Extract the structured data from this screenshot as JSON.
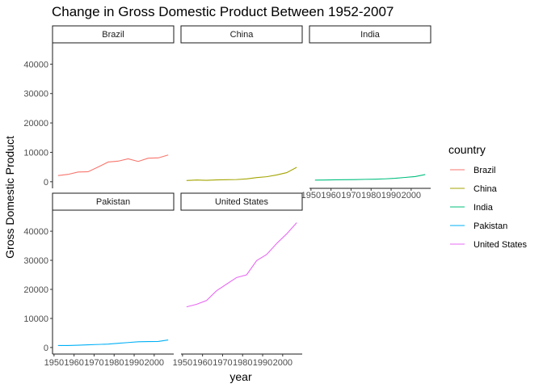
{
  "chart_data": {
    "type": "line",
    "title": "Change in Gross Domestic Product Between 1952-2007",
    "xlabel": "year",
    "ylabel": "Gross Domestic Product",
    "xlim": [
      1952,
      2007
    ],
    "ylim": [
      0,
      45000
    ],
    "x_ticks": [
      {
        "value": 1950,
        "label": "1950"
      },
      {
        "value": 1960,
        "label": "1960"
      },
      {
        "value": 1970,
        "label": "1970"
      },
      {
        "value": 1980,
        "label": "1980"
      },
      {
        "value": 1990,
        "label": "1990"
      },
      {
        "value": 2000,
        "label": "2000"
      }
    ],
    "y_ticks": [
      {
        "value": 0,
        "label": "0"
      },
      {
        "value": 10000,
        "label": "10000"
      },
      {
        "value": 20000,
        "label": "20000"
      },
      {
        "value": 30000,
        "label": "30000"
      },
      {
        "value": 40000,
        "label": "40000"
      }
    ],
    "grid": false,
    "facets": true,
    "legend_title": "country",
    "legend_position": "right",
    "x": [
      1952,
      1957,
      1962,
      1967,
      1972,
      1977,
      1982,
      1987,
      1992,
      1997,
      2002,
      2007
    ],
    "series": [
      {
        "name": "Brazil",
        "color": "#F8766D",
        "values": [
          2100,
          2500,
          3300,
          3400,
          5000,
          6700,
          7000,
          7800,
          6900,
          8000,
          8100,
          9100
        ]
      },
      {
        "name": "China",
        "color": "#A3A500",
        "values": [
          400,
          580,
          490,
          610,
          680,
          740,
          960,
          1400,
          1700,
          2300,
          3100,
          4900
        ]
      },
      {
        "name": "India",
        "color": "#00BF7D",
        "values": [
          550,
          590,
          660,
          700,
          720,
          810,
          860,
          980,
          1160,
          1460,
          1750,
          2450
        ]
      },
      {
        "name": "Pakistan",
        "color": "#00B0F6",
        "values": [
          680,
          700,
          800,
          940,
          1050,
          1180,
          1440,
          1710,
          1970,
          2050,
          2090,
          2600
        ]
      },
      {
        "name": "United States",
        "color": "#E76BF3",
        "values": [
          13990,
          14850,
          16170,
          19530,
          21800,
          24070,
          25010,
          29880,
          32000,
          35770,
          39100,
          42950
        ]
      }
    ]
  }
}
